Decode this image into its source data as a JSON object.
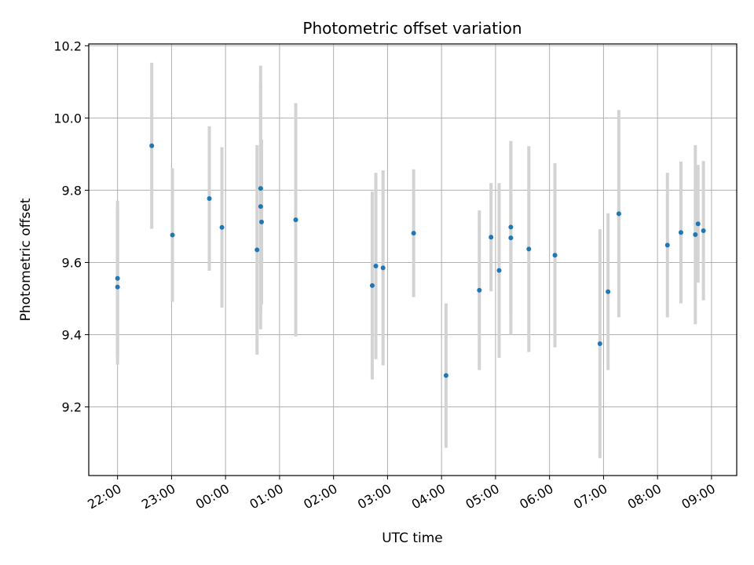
{
  "chart_data": {
    "type": "scatter",
    "title": "Photometric offset variation",
    "xlabel": "UTC time",
    "ylabel": "Photometric offset",
    "x_unit": "hours",
    "xlim": [
      "21:28",
      "09:28"
    ],
    "ylim": [
      9.01,
      10.205
    ],
    "grid": true,
    "x_ticks": [
      "22:00",
      "23:00",
      "00:00",
      "01:00",
      "02:00",
      "03:00",
      "04:00",
      "05:00",
      "06:00",
      "07:00",
      "08:00",
      "09:00"
    ],
    "y_ticks": [
      "9.2",
      "9.4",
      "9.6",
      "9.8",
      "10.0",
      "10.2"
    ],
    "marker_color": "#1f77b4",
    "errorbar_color": "#d3d3d3",
    "points": [
      {
        "t": "22:00",
        "y": 9.556,
        "err": 0.215
      },
      {
        "t": "22:00",
        "y": 9.532,
        "err": 0.215
      },
      {
        "t": "22:38",
        "y": 9.923,
        "err": 0.23
      },
      {
        "t": "23:01",
        "y": 9.676,
        "err": 0.185
      },
      {
        "t": "23:42",
        "y": 9.777,
        "err": 0.2
      },
      {
        "t": "23:56",
        "y": 9.697,
        "err": 0.222
      },
      {
        "t": "00:35",
        "y": 9.635,
        "err": 0.29
      },
      {
        "t": "00:39",
        "y": 9.805,
        "err": 0.34
      },
      {
        "t": "00:39",
        "y": 9.755,
        "err": 0.34
      },
      {
        "t": "00:40",
        "y": 9.712,
        "err": 0.228
      },
      {
        "t": "01:18",
        "y": 9.718,
        "err": 0.323
      },
      {
        "t": "02:43",
        "y": 9.536,
        "err": 0.26
      },
      {
        "t": "02:47",
        "y": 9.59,
        "err": 0.258
      },
      {
        "t": "02:55",
        "y": 9.585,
        "err": 0.27
      },
      {
        "t": "03:29",
        "y": 9.681,
        "err": 0.177
      },
      {
        "t": "04:05",
        "y": 9.287,
        "err": 0.2
      },
      {
        "t": "04:42",
        "y": 9.523,
        "err": 0.221
      },
      {
        "t": "04:55",
        "y": 9.67,
        "err": 0.15
      },
      {
        "t": "05:04",
        "y": 9.578,
        "err": 0.242
      },
      {
        "t": "05:17",
        "y": 9.668,
        "err": 0.268
      },
      {
        "t": "05:17",
        "y": 9.698,
        "err": 0.238
      },
      {
        "t": "05:37",
        "y": 9.637,
        "err": 0.285
      },
      {
        "t": "06:06",
        "y": 9.62,
        "err": 0.255
      },
      {
        "t": "06:56",
        "y": 9.375,
        "err": 0.317
      },
      {
        "t": "07:05",
        "y": 9.519,
        "err": 0.217
      },
      {
        "t": "07:17",
        "y": 9.735,
        "err": 0.287
      },
      {
        "t": "08:11",
        "y": 9.648,
        "err": 0.2
      },
      {
        "t": "08:26",
        "y": 9.683,
        "err": 0.196
      },
      {
        "t": "08:42",
        "y": 9.677,
        "err": 0.248
      },
      {
        "t": "08:45",
        "y": 9.707,
        "err": 0.163
      },
      {
        "t": "08:51",
        "y": 9.688,
        "err": 0.193
      }
    ]
  }
}
